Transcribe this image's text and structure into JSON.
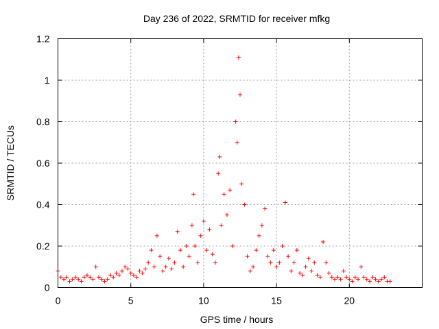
{
  "chart_data": {
    "type": "scatter",
    "title": "Day 236 of 2022, SRMTID for receiver mfkg",
    "xlabel": "GPS time / hours",
    "ylabel": "SRMTID / TECUs",
    "xlim": [
      0,
      25
    ],
    "ylim": [
      0,
      1.2
    ],
    "xticks": [
      0,
      5,
      10,
      15,
      20
    ],
    "xtick_labels": [
      "0",
      "5",
      "10",
      "15",
      "20"
    ],
    "yticks": [
      0,
      0.2,
      0.4,
      0.6,
      0.8,
      1.0,
      1.2
    ],
    "ytick_labels": [
      "0",
      "0.2",
      "0.4",
      "0.6",
      "0.8",
      "1",
      "1.2"
    ],
    "grid": true,
    "marker": "+",
    "series": [
      {
        "name": "SRMTID",
        "color": "#ff0000",
        "x": [
          0.0,
          0.2,
          0.4,
          0.6,
          0.8,
          1.0,
          1.2,
          1.4,
          1.6,
          1.8,
          2.0,
          2.2,
          2.4,
          2.6,
          2.8,
          3.0,
          3.2,
          3.4,
          3.6,
          3.8,
          4.0,
          4.2,
          4.4,
          4.6,
          4.8,
          5.0,
          5.2,
          5.4,
          5.6,
          5.8,
          6.0,
          6.2,
          6.4,
          6.6,
          6.8,
          7.0,
          7.2,
          7.4,
          7.6,
          7.8,
          8.0,
          8.2,
          8.4,
          8.6,
          8.8,
          9.0,
          9.2,
          9.3,
          9.4,
          9.6,
          9.8,
          10.0,
          10.2,
          10.4,
          10.6,
          10.8,
          11.0,
          11.1,
          11.2,
          11.4,
          11.6,
          11.8,
          12.0,
          12.2,
          12.3,
          12.4,
          12.5,
          12.6,
          12.8,
          13.0,
          13.2,
          13.4,
          13.6,
          13.8,
          14.0,
          14.2,
          14.4,
          14.6,
          14.8,
          15.0,
          15.2,
          15.4,
          15.6,
          15.8,
          16.0,
          16.2,
          16.4,
          16.6,
          16.8,
          17.0,
          17.2,
          17.4,
          17.6,
          17.8,
          18.0,
          18.2,
          18.4,
          18.6,
          18.8,
          19.0,
          19.2,
          19.4,
          19.6,
          19.8,
          20.0,
          20.2,
          20.4,
          20.6,
          20.8,
          21.0,
          21.2,
          21.4,
          21.6,
          21.8,
          22.0,
          22.2,
          22.4,
          22.6,
          22.8
        ],
        "y": [
          0.08,
          0.05,
          0.04,
          0.05,
          0.03,
          0.04,
          0.05,
          0.04,
          0.03,
          0.05,
          0.06,
          0.05,
          0.04,
          0.1,
          0.05,
          0.04,
          0.03,
          0.04,
          0.06,
          0.05,
          0.07,
          0.06,
          0.08,
          0.1,
          0.09,
          0.07,
          0.06,
          0.05,
          0.08,
          0.07,
          0.09,
          0.12,
          0.18,
          0.1,
          0.25,
          0.15,
          0.08,
          0.1,
          0.14,
          0.09,
          0.12,
          0.27,
          0.18,
          0.1,
          0.2,
          0.15,
          0.3,
          0.45,
          0.2,
          0.12,
          0.25,
          0.32,
          0.18,
          0.28,
          0.16,
          0.12,
          0.55,
          0.63,
          0.3,
          0.45,
          0.35,
          0.47,
          0.2,
          0.8,
          0.7,
          1.11,
          0.93,
          0.5,
          0.4,
          0.15,
          0.08,
          0.1,
          0.18,
          0.25,
          0.3,
          0.38,
          0.15,
          0.12,
          0.18,
          0.1,
          0.12,
          0.2,
          0.41,
          0.15,
          0.08,
          0.12,
          0.18,
          0.07,
          0.06,
          0.1,
          0.14,
          0.08,
          0.12,
          0.06,
          0.05,
          0.22,
          0.12,
          0.07,
          0.05,
          0.04,
          0.05,
          0.04,
          0.08,
          0.05,
          0.04,
          0.03,
          0.05,
          0.04,
          0.1,
          0.05,
          0.04,
          0.03,
          0.05,
          0.04,
          0.03,
          0.04,
          0.05,
          0.03,
          0.03
        ]
      }
    ]
  }
}
